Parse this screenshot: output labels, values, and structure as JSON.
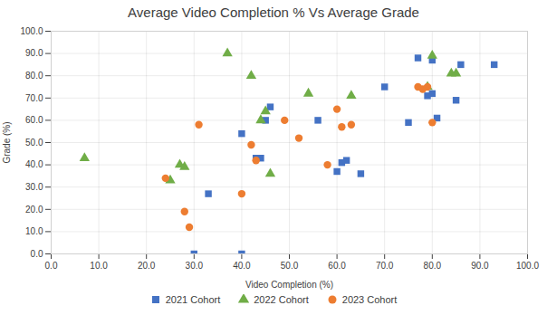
{
  "chart_data": {
    "type": "scatter",
    "title": "Average Video Completion % Vs Average Grade",
    "xlabel": "Video Completion (%)",
    "ylabel": "Grade (%)",
    "xlim": [
      0.0,
      100.0
    ],
    "ylim": [
      0.0,
      100.0
    ],
    "xticks": [
      {
        "value": 0,
        "label": "0.0"
      },
      {
        "value": 10,
        "label": "10.0"
      },
      {
        "value": 20,
        "label": "20.0"
      },
      {
        "value": 30,
        "label": "30.0"
      },
      {
        "value": 40,
        "label": "40.0"
      },
      {
        "value": 50,
        "label": "50.0"
      },
      {
        "value": 60,
        "label": "60.0"
      },
      {
        "value": 70,
        "label": "70.0"
      },
      {
        "value": 80,
        "label": "80.0"
      },
      {
        "value": 90,
        "label": "90.0"
      },
      {
        "value": 100,
        "label": "100.0"
      }
    ],
    "yticks": [
      {
        "value": 0,
        "label": "0.0"
      },
      {
        "value": 10,
        "label": "10.0"
      },
      {
        "value": 20,
        "label": "20.0"
      },
      {
        "value": 30,
        "label": "30.0"
      },
      {
        "value": 40,
        "label": "40.0"
      },
      {
        "value": 50,
        "label": "50.0"
      },
      {
        "value": 60,
        "label": "60.0"
      },
      {
        "value": 70,
        "label": "70.0"
      },
      {
        "value": 80,
        "label": "80.0"
      },
      {
        "value": 90,
        "label": "90.0"
      },
      {
        "value": 100,
        "label": "100.0"
      }
    ],
    "grid": true,
    "legend": "bottom",
    "series": [
      {
        "name": "2021 Cohort",
        "color": "#4472C4",
        "marker": "square",
        "x": [
          30,
          33,
          40,
          40,
          43,
          44,
          45,
          46,
          56,
          60,
          61,
          62,
          65,
          70,
          75,
          77,
          79,
          80,
          80,
          81,
          85,
          86,
          93
        ],
        "y": [
          0,
          27,
          0,
          54,
          43,
          43,
          60,
          66,
          60,
          37,
          41,
          42,
          36,
          75,
          59,
          88,
          71,
          72,
          87,
          61,
          69,
          85,
          85
        ]
      },
      {
        "name": "2022 Cohort",
        "color": "#70AD47",
        "marker": "triangle",
        "x": [
          7,
          25,
          27,
          28,
          37,
          42,
          44,
          45,
          46,
          54,
          63,
          79,
          80,
          84,
          85
        ],
        "y": [
          43,
          33,
          40,
          39,
          90,
          80,
          60,
          64,
          36,
          72,
          71,
          75,
          89,
          81,
          81
        ]
      },
      {
        "name": "2023 Cohort",
        "color": "#ED7D31",
        "marker": "circle",
        "x": [
          24,
          28,
          29,
          31,
          40,
          42,
          43,
          49,
          52,
          58,
          60,
          61,
          63,
          77,
          78,
          79,
          80
        ],
        "y": [
          34,
          19,
          12,
          58,
          27,
          49,
          42,
          60,
          52,
          40,
          65,
          57,
          58,
          75,
          74,
          75,
          59
        ]
      }
    ]
  }
}
